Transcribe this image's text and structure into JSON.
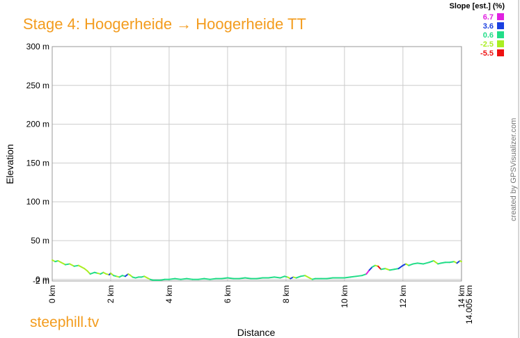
{
  "header": {
    "title": "Stage 4: Hoogerheide → Hoogerheide TT",
    "site": "steephill.tv",
    "created_by": "created by GPSVisualizer.com"
  },
  "chart_data": {
    "type": "line",
    "xlabel": "Distance",
    "ylabel": "Elevation",
    "xlim": [
      0,
      14.005
    ],
    "ylim": [
      -2,
      300
    ],
    "x_ticks": [
      {
        "value": 0,
        "label": "0 km"
      },
      {
        "value": 2,
        "label": "2 km"
      },
      {
        "value": 4,
        "label": "4 km"
      },
      {
        "value": 6,
        "label": "6 km"
      },
      {
        "value": 8,
        "label": "8 km"
      },
      {
        "value": 10,
        "label": "10 km"
      },
      {
        "value": 12,
        "label": "12 km"
      },
      {
        "value": 14,
        "label": "14 km"
      },
      {
        "value": 14.005,
        "label": "14.005 km"
      }
    ],
    "y_ticks": [
      {
        "value": -2,
        "label": "-2 m"
      },
      {
        "value": 0,
        "label": "0 m"
      },
      {
        "value": 50,
        "label": "50 m"
      },
      {
        "value": 100,
        "label": "100 m"
      },
      {
        "value": 150,
        "label": "150 m"
      },
      {
        "value": 200,
        "label": "200 m"
      },
      {
        "value": 250,
        "label": "250 m"
      },
      {
        "value": 300,
        "label": "300 m"
      }
    ],
    "legend": {
      "title": "Slope [est.] (%)",
      "position": "top-right",
      "items": [
        {
          "label": "6.7",
          "color": "#e020e0"
        },
        {
          "label": "3.6",
          "color": "#1a3fe0"
        },
        {
          "label": "0.6",
          "color": "#22dd88"
        },
        {
          "label": "-2.5",
          "color": "#aaee22"
        },
        {
          "label": "-5.5",
          "color": "#ee1111"
        }
      ]
    },
    "series": [
      {
        "x": [
          0,
          0.1,
          0.2,
          0.3,
          0.45,
          0.6,
          0.75,
          0.9,
          1.0,
          1.1,
          1.2,
          1.3,
          1.45,
          1.55,
          1.65,
          1.75,
          1.85,
          1.95,
          2.0,
          2.1,
          2.2,
          2.3,
          2.4,
          2.5,
          2.6,
          2.65,
          2.75,
          2.85,
          2.95,
          3.05,
          3.15,
          3.25,
          3.35,
          3.45,
          3.55,
          3.7,
          3.85,
          4.0,
          4.2,
          4.4,
          4.6,
          4.8,
          5.0,
          5.2,
          5.4,
          5.6,
          5.8,
          6.0,
          6.2,
          6.4,
          6.6,
          6.8,
          7.0,
          7.2,
          7.4,
          7.6,
          7.8,
          7.95,
          8.05,
          8.15,
          8.25,
          8.35,
          8.5,
          8.65,
          8.8,
          8.9,
          9.0,
          9.2,
          9.4,
          9.6,
          9.8,
          10.0,
          10.2,
          10.4,
          10.6,
          10.75,
          10.85,
          10.95,
          11.05,
          11.15,
          11.25,
          11.4,
          11.55,
          11.7,
          11.85,
          12.0,
          12.1,
          12.2,
          12.35,
          12.5,
          12.7,
          12.9,
          13.05,
          13.2,
          13.3,
          13.45,
          13.6,
          13.75,
          13.85,
          13.95,
          14.005
        ],
        "y": [
          25,
          23,
          24,
          22,
          19,
          20,
          17,
          18,
          16,
          14,
          11,
          7,
          9,
          8,
          7,
          9,
          7,
          6,
          8,
          5,
          4,
          3,
          5,
          4,
          7,
          6,
          3,
          2,
          3,
          3,
          4,
          2,
          0,
          -1,
          -1,
          -1,
          0,
          0,
          1,
          0,
          1,
          0,
          0,
          1,
          0,
          1,
          1,
          2,
          1,
          1,
          2,
          1,
          1,
          2,
          2,
          3,
          2,
          4,
          3,
          1,
          3,
          2,
          4,
          5,
          2,
          0,
          1,
          1,
          1,
          2,
          2,
          2,
          3,
          4,
          5,
          7,
          12,
          16,
          18,
          17,
          13,
          14,
          12,
          13,
          14,
          18,
          20,
          18,
          20,
          21,
          20,
          22,
          24,
          20,
          21,
          22,
          22,
          23,
          21,
          24,
          23
        ]
      }
    ]
  }
}
